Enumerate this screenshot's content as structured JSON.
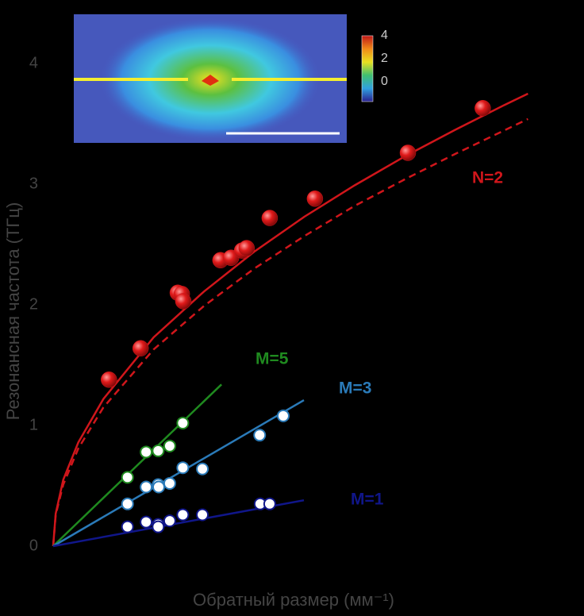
{
  "chart_data": {
    "type": "scatter",
    "ylabel": "Резонансная частота (ТГц)",
    "xlabel": "Обратный размер (мм⁻¹)",
    "xlim": [
      0,
      10.55
    ],
    "ylim": [
      0,
      4.5
    ],
    "yticks": [
      0,
      1,
      2,
      3,
      4
    ],
    "inset": {
      "colorbar_ticks": [
        4,
        2,
        0
      ]
    },
    "series": [
      {
        "name": "N=2",
        "color": "#d0161b",
        "marker": "filled",
        "x": [
          1.11,
          1.74,
          2.48,
          2.56,
          2.59,
          3.33,
          3.54,
          3.76,
          3.85,
          4.31,
          5.21,
          7.06,
          8.55
        ],
        "values": [
          1.38,
          1.64,
          2.1,
          2.09,
          2.03,
          2.37,
          2.39,
          2.45,
          2.47,
          2.72,
          2.88,
          3.26,
          3.63
        ],
        "fit": {
          "x": [
            0,
            0.05,
            0.2,
            0.5,
            1,
            2,
            3,
            4,
            5,
            6,
            7,
            8,
            9,
            9.45
          ],
          "values": [
            0,
            0.27,
            0.55,
            0.86,
            1.22,
            1.73,
            2.11,
            2.44,
            2.73,
            2.99,
            3.23,
            3.45,
            3.66,
            3.75
          ]
        },
        "fit_dashed": {
          "x": [
            0,
            0.05,
            0.2,
            0.5,
            1,
            2,
            3,
            4,
            5,
            6,
            7,
            8,
            9,
            9.45
          ],
          "values": [
            0,
            0.26,
            0.51,
            0.81,
            1.15,
            1.63,
            1.99,
            2.3,
            2.57,
            2.82,
            3.04,
            3.25,
            3.45,
            3.54
          ]
        }
      },
      {
        "name": "M=5",
        "color": "#1f8a1f",
        "marker": "open",
        "x": [
          1.48,
          1.85,
          2.09,
          2.32,
          2.58
        ],
        "values": [
          0.57,
          0.78,
          0.79,
          0.83,
          1.02
        ],
        "fit": {
          "x": [
            0,
            3.35
          ],
          "values": [
            0,
            1.34
          ]
        }
      },
      {
        "name": "M=3",
        "color": "#2a7ab8",
        "marker": "open",
        "x": [
          1.48,
          1.85,
          2.09,
          2.1,
          2.32,
          2.58,
          2.97,
          4.11,
          4.58
        ],
        "values": [
          0.35,
          0.49,
          0.51,
          0.49,
          0.52,
          0.65,
          0.64,
          0.92,
          1.08
        ],
        "fit": {
          "x": [
            0,
            4.99
          ],
          "values": [
            0,
            1.21
          ]
        }
      },
      {
        "name": "M=1",
        "color": "#10168a",
        "marker": "open",
        "x": [
          1.48,
          1.85,
          2.09,
          2.09,
          2.32,
          2.58,
          2.97,
          4.12,
          4.31
        ],
        "values": [
          0.16,
          0.2,
          0.18,
          0.16,
          0.21,
          0.26,
          0.26,
          0.35,
          0.35
        ],
        "fit": {
          "x": [
            0,
            4.99
          ],
          "values": [
            0,
            0.38
          ]
        }
      }
    ]
  }
}
